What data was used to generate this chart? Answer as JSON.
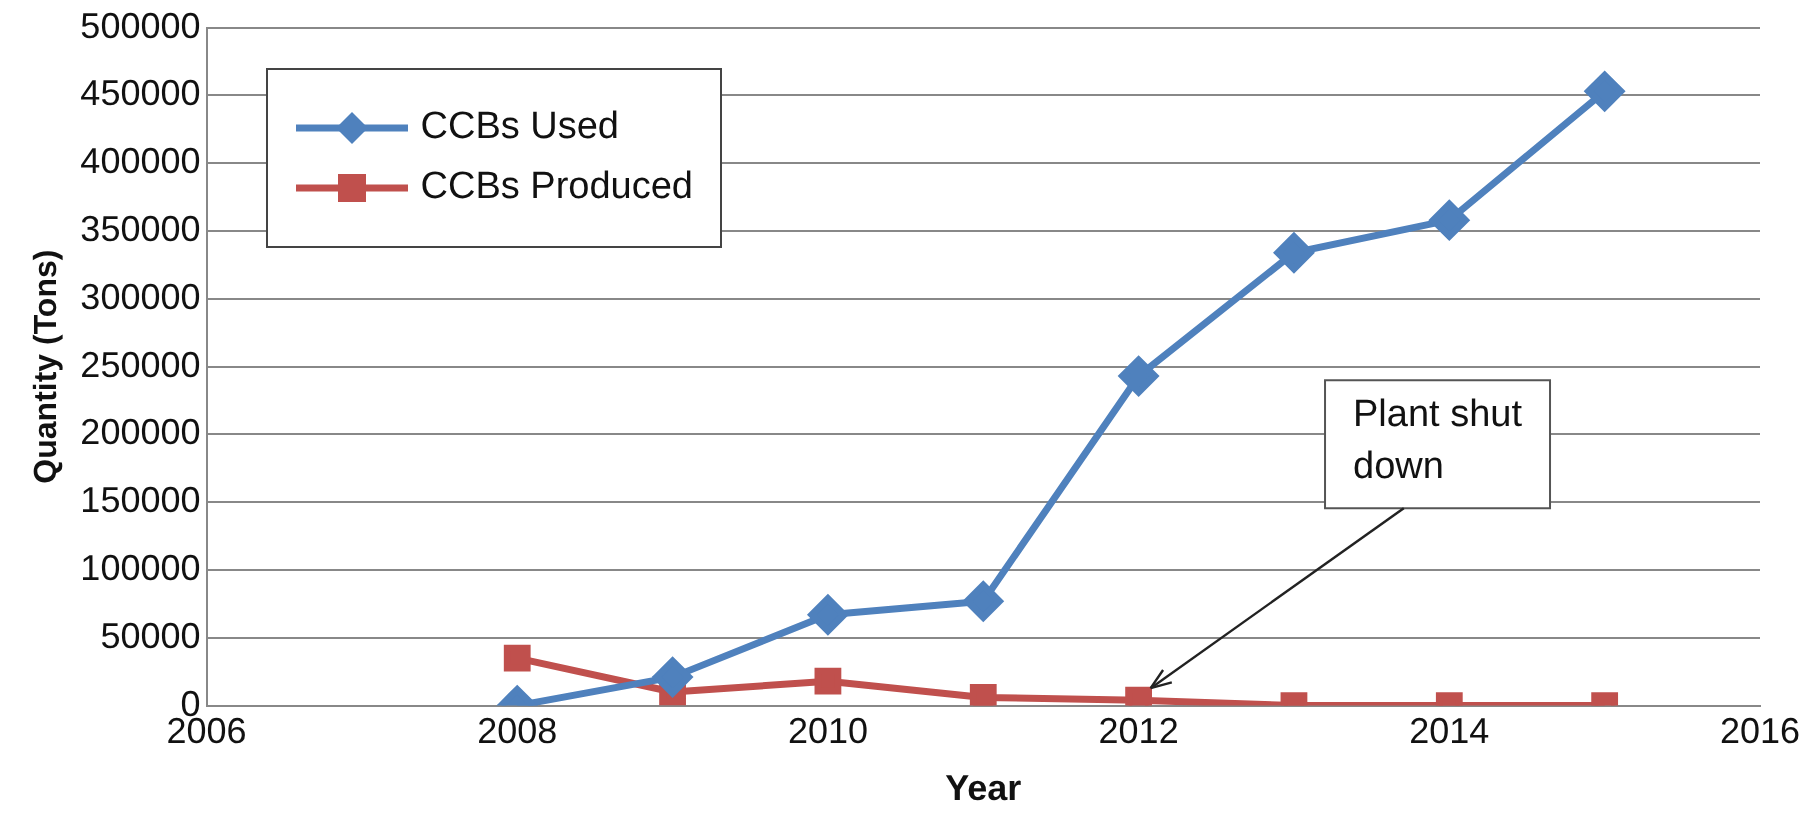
{
  "chart_data": {
    "type": "line",
    "xlabel": "Year",
    "ylabel": "Quantity (Tons)",
    "x": [
      2008,
      2009,
      2010,
      2011,
      2012,
      2013,
      2014,
      2015
    ],
    "series": [
      {
        "name": "CCBs Used",
        "color": "#4f81bd",
        "marker": "diamond",
        "values": [
          0,
          21000,
          67000,
          77000,
          243000,
          334000,
          358000,
          453000
        ]
      },
      {
        "name": "CCBs Produced",
        "color": "#c0504d",
        "marker": "square",
        "values": [
          35000,
          10000,
          18000,
          6000,
          4000,
          0,
          0,
          0
        ]
      }
    ],
    "xlim": [
      2006,
      2016
    ],
    "xticks": [
      2006,
      2008,
      2010,
      2012,
      2014,
      2016
    ],
    "ylim": [
      0,
      500000
    ],
    "yticks": [
      0,
      50000,
      100000,
      150000,
      200000,
      250000,
      300000,
      350000,
      400000,
      450000,
      500000
    ],
    "grid": "y",
    "legend": "top left",
    "line_style": "solid",
    "annotations": [
      {
        "text": "Plant shut down",
        "x": 2012,
        "y": 4000
      }
    ]
  }
}
